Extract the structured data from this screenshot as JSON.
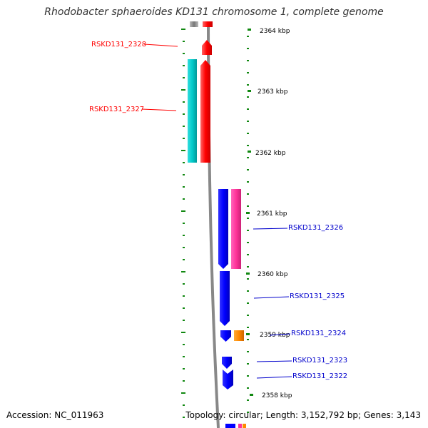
{
  "title": "Rhodobacter sphaeroides KD131 chromosome 1, complete genome",
  "footer": {
    "accession": "Accession: NC_011963",
    "topology": "Topology: circular; Length: 3,152,792 bp; Genes: 3,143"
  },
  "scale_labels": [
    "2364 kbp",
    "2363 kbp",
    "2362 kbp",
    "2361 kbp",
    "2360 kbp",
    "2359 kbp",
    "2358 kbp"
  ],
  "genes": {
    "left": [
      {
        "name": "RSKD131_2328",
        "color": "#ff0000"
      },
      {
        "name": "RSKD131_2327",
        "color": "#ff0000"
      }
    ],
    "right": [
      {
        "name": "RSKD131_2326",
        "color": "#0000cc"
      },
      {
        "name": "RSKD131_2325",
        "color": "#0000cc"
      },
      {
        "name": "RSKD131_2324",
        "color": "#0000cc"
      },
      {
        "name": "RSKD131_2323",
        "color": "#0000cc"
      },
      {
        "name": "RSKD131_2322",
        "color": "#0000cc"
      }
    ]
  },
  "colors": {
    "forward_gene": "#ff0000",
    "reverse_gene": "#0000ff",
    "cyan_feature": "#00cccc",
    "pink_feature": "#ff3399",
    "orange_feature": "#ff8800",
    "tick": "#008800",
    "backbone": "#999999"
  }
}
